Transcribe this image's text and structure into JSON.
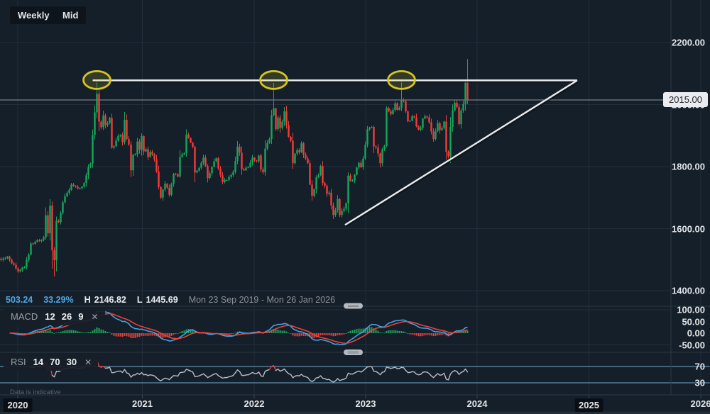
{
  "toolbar": {
    "weekly_label": "Weekly",
    "mid_label": "Mid"
  },
  "status_bar": {
    "change": "503.24",
    "change_pct": "33.29%",
    "high_label": "H",
    "high": "2146.82",
    "low_label": "L",
    "low": "1445.69",
    "range": "Mon 23 Sep 2019 - Mon 26 Jan 2026"
  },
  "price_axis": {
    "current_price_label": "2015.00",
    "current_price": 2015,
    "ticks": [
      {
        "label": "2200.00",
        "price": 2200
      },
      {
        "label": "2000.00",
        "price": 2000
      },
      {
        "label": "1800.00",
        "price": 1800
      },
      {
        "label": "1600.00",
        "price": 1600
      },
      {
        "label": "1400.00",
        "price": 1400
      }
    ]
  },
  "macd_panel": {
    "title": "MACD",
    "params": [
      "12",
      "26",
      "9"
    ],
    "close_label": "✕",
    "ticks": [
      {
        "label": "100.00",
        "value": 100
      },
      {
        "label": "50.00",
        "value": 50
      },
      {
        "label": "0.00",
        "value": 0
      },
      {
        "label": "-50.00",
        "value": -50
      }
    ]
  },
  "rsi_panel": {
    "title": "RSI",
    "params": [
      "14",
      "70",
      "30"
    ],
    "close_label": "✕",
    "ticks": [
      {
        "label": "70",
        "value": 70
      },
      {
        "label": "30",
        "value": 30
      }
    ],
    "bands": [
      70,
      30
    ]
  },
  "time_axis": {
    "years": [
      {
        "label": "2020",
        "boxed": true
      },
      {
        "label": "2021",
        "boxed": false
      },
      {
        "label": "2022",
        "boxed": false
      },
      {
        "label": "2023",
        "boxed": false
      },
      {
        "label": "2024",
        "boxed": false
      },
      {
        "label": "2025",
        "boxed": true
      },
      {
        "label": "2026",
        "boxed": false
      }
    ]
  },
  "footer": {
    "disclaimer": "Data is indicative"
  },
  "colors": {
    "background": "#151f29",
    "grid": "#222e3a",
    "axis_border": "#2c3945",
    "candle_up": "#17a65a",
    "candle_down": "#f53b39",
    "macd_line": "#45a1e0",
    "signal_line": "#e8413e",
    "hist_up": "#1da35c",
    "hist_down": "#e8413e",
    "rsi_line": "#b8bcc3",
    "rsi_hot": "#e8413e",
    "band_blue": "#73a8d0",
    "trendline": "#e9ecef",
    "annotation_yellow": "#d6c51f",
    "price_line": "#8f95a0",
    "accent_blue": "#4fa5e5"
  },
  "chart_data": {
    "type": "candlestick",
    "timeframe": "Weekly",
    "price_range_shown": [
      1400,
      2200
    ],
    "high_shown": 2146.82,
    "low_shown": 1445.69,
    "last_close": 2015,
    "weekly_close_anchors": [
      [
        0,
        1499
      ],
      [
        3,
        1510
      ],
      [
        5,
        1488
      ],
      [
        8,
        1462
      ],
      [
        11,
        1476
      ],
      [
        13,
        1516
      ],
      [
        14,
        1552
      ],
      [
        16,
        1557
      ],
      [
        18,
        1560
      ],
      [
        20,
        1572
      ],
      [
        21,
        1643
      ],
      [
        22,
        1585
      ],
      [
        23,
        1674
      ],
      [
        24,
        1530
      ],
      [
        25,
        1498
      ],
      [
        26,
        1625
      ],
      [
        27,
        1621
      ],
      [
        29,
        1685
      ],
      [
        31,
        1715
      ],
      [
        33,
        1742
      ],
      [
        35,
        1735
      ],
      [
        37,
        1731
      ],
      [
        39,
        1747
      ],
      [
        40,
        1772
      ],
      [
        41,
        1798
      ],
      [
        42,
        1810
      ],
      [
        43,
        1902
      ],
      [
        44,
        1975
      ],
      [
        45,
        2035
      ],
      [
        46,
        1945
      ],
      [
        47,
        1927
      ],
      [
        48,
        1965
      ],
      [
        49,
        1934
      ],
      [
        50,
        1940
      ],
      [
        51,
        1957
      ],
      [
        52,
        1861
      ],
      [
        53,
        1866
      ],
      [
        55,
        1899
      ],
      [
        56,
        1902
      ],
      [
        57,
        1879
      ],
      [
        58,
        1951
      ],
      [
        59,
        1889
      ],
      [
        60,
        1871
      ],
      [
        61,
        1788
      ],
      [
        62,
        1838
      ],
      [
        63,
        1840
      ],
      [
        64,
        1881
      ],
      [
        65,
        1854
      ],
      [
        66,
        1898
      ],
      [
        67,
        1849
      ],
      [
        68,
        1856
      ],
      [
        69,
        1831
      ],
      [
        70,
        1847
      ],
      [
        72,
        1824
      ],
      [
        73,
        1784
      ],
      [
        74,
        1734
      ],
      [
        75,
        1700
      ],
      [
        76,
        1726
      ],
      [
        77,
        1745
      ],
      [
        78,
        1732
      ],
      [
        79,
        1709
      ],
      [
        80,
        1744
      ],
      [
        81,
        1776
      ],
      [
        83,
        1768
      ],
      [
        84,
        1831
      ],
      [
        86,
        1843
      ],
      [
        87,
        1903
      ],
      [
        88,
        1892
      ],
      [
        89,
        1877
      ],
      [
        90,
        1864
      ],
      [
        91,
        1781
      ],
      [
        92,
        1787
      ],
      [
        94,
        1812
      ],
      [
        95,
        1829
      ],
      [
        96,
        1802
      ],
      [
        97,
        1763
      ],
      [
        98,
        1779
      ],
      [
        100,
        1817
      ],
      [
        101,
        1827
      ],
      [
        102,
        1794
      ],
      [
        104,
        1750
      ],
      [
        105,
        1757
      ],
      [
        106,
        1757
      ],
      [
        107,
        1767
      ],
      [
        109,
        1783
      ],
      [
        110,
        1818
      ],
      [
        111,
        1864
      ],
      [
        112,
        1845
      ],
      [
        113,
        1792
      ],
      [
        114,
        1788
      ],
      [
        116,
        1798
      ],
      [
        117,
        1812
      ],
      [
        118,
        1829
      ],
      [
        120,
        1817
      ],
      [
        121,
        1836
      ],
      [
        122,
        1791
      ],
      [
        123,
        1782
      ],
      [
        124,
        1858
      ],
      [
        126,
        1889
      ],
      [
        127,
        1966
      ],
      [
        128,
        1988
      ],
      [
        129,
        1921
      ],
      [
        130,
        1958
      ],
      [
        131,
        1925
      ],
      [
        132,
        1945
      ],
      [
        133,
        1978
      ],
      [
        134,
        1934
      ],
      [
        135,
        1896
      ],
      [
        136,
        1883
      ],
      [
        137,
        1811
      ],
      [
        138,
        1842
      ],
      [
        139,
        1853
      ],
      [
        140,
        1846
      ],
      [
        141,
        1875
      ],
      [
        142,
        1839
      ],
      [
        143,
        1826
      ],
      [
        144,
        1811
      ],
      [
        145,
        1742
      ],
      [
        146,
        1706
      ],
      [
        147,
        1727
      ],
      [
        148,
        1765
      ],
      [
        149,
        1772
      ],
      [
        150,
        1802
      ],
      [
        151,
        1747
      ],
      [
        152,
        1738
      ],
      [
        153,
        1712
      ],
      [
        154,
        1716
      ],
      [
        155,
        1675
      ],
      [
        156,
        1644
      ],
      [
        157,
        1660
      ],
      [
        158,
        1695
      ],
      [
        159,
        1644
      ],
      [
        160,
        1657
      ],
      [
        161,
        1664
      ],
      [
        162,
        1682
      ],
      [
        163,
        1771
      ],
      [
        164,
        1754
      ],
      [
        165,
        1755
      ],
      [
        167,
        1797
      ],
      [
        168,
        1812
      ],
      [
        169,
        1798
      ],
      [
        170,
        1826
      ],
      [
        171,
        1870
      ],
      [
        172,
        1920
      ],
      [
        173,
        1926
      ],
      [
        174,
        1928
      ],
      [
        175,
        1865
      ],
      [
        176,
        1862
      ],
      [
        177,
        1842
      ],
      [
        178,
        1811
      ],
      [
        179,
        1856
      ],
      [
        180,
        1867
      ],
      [
        181,
        1989
      ],
      [
        182,
        1978
      ],
      [
        183,
        1969
      ],
      [
        185,
        2004
      ],
      [
        186,
        1983
      ],
      [
        187,
        1990
      ],
      [
        188,
        2016
      ],
      [
        189,
        2011
      ],
      [
        190,
        1978
      ],
      [
        191,
        1946
      ],
      [
        192,
        1948
      ],
      [
        193,
        1962
      ],
      [
        194,
        1958
      ],
      [
        195,
        1930
      ],
      [
        196,
        1919
      ],
      [
        197,
        1925
      ],
      [
        198,
        1955
      ],
      [
        199,
        1962
      ],
      [
        200,
        1959
      ],
      [
        201,
        1943
      ],
      [
        202,
        1913
      ],
      [
        203,
        1889
      ],
      [
        204,
        1914
      ],
      [
        205,
        1940
      ],
      [
        206,
        1918
      ],
      [
        207,
        1924
      ],
      [
        208,
        1945
      ],
      [
        209,
        1848
      ],
      [
        210,
        1833
      ],
      [
        211,
        1928
      ],
      [
        212,
        1981
      ],
      [
        213,
        2006
      ],
      [
        214,
        1992
      ],
      [
        215,
        1937
      ],
      [
        216,
        1981
      ],
      [
        217,
        2002
      ],
      [
        218,
        2072
      ],
      [
        219,
        2015
      ]
    ],
    "specials": {
      "24": {
        "low": 1471
      },
      "25": {
        "low": 1445.7
      },
      "45": {
        "high": 2075
      },
      "128": {
        "high": 2070
      },
      "188": {
        "high": 2081
      },
      "218": {
        "high": 2075
      },
      "219": {
        "high": 2146.8,
        "low": 2002
      }
    },
    "indicators": {
      "macd": {
        "fast": 12,
        "slow": 26,
        "signal": 9
      },
      "rsi": {
        "period": 14,
        "overbought": 70,
        "oversold": 30
      }
    },
    "annotations": {
      "resistance_price": 2078,
      "resistance_from_week": 43,
      "apex_week": 270.5,
      "trendline_start": {
        "week": 161.5,
        "price": 1612
      },
      "ellipse_weeks": [
        45,
        128,
        188
      ],
      "ellipse_price": 2078
    }
  }
}
